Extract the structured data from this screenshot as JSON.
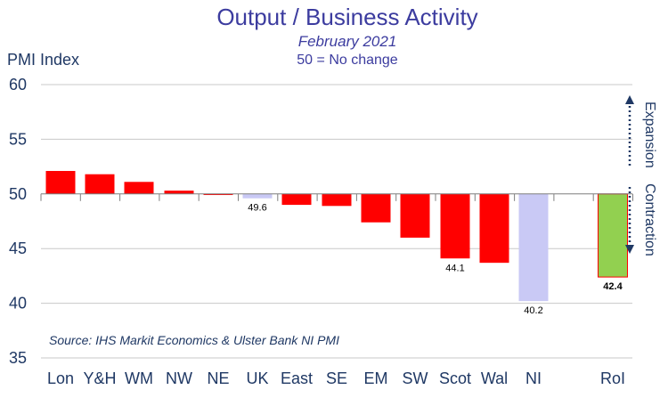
{
  "chart_data": {
    "type": "bar",
    "title": "Output / Business Activity",
    "subtitle": "February 2021",
    "note": "50 = No change",
    "ylabel": "PMI Index",
    "ylim": [
      35,
      60
    ],
    "yticks": [
      35,
      40,
      45,
      50,
      55,
      60
    ],
    "baseline": 50,
    "grid": true,
    "categories": [
      "Lon",
      "Y&H",
      "WM",
      "NW",
      "NE",
      "UK",
      "East",
      "SE",
      "EM",
      "SW",
      "Scot",
      "Wal",
      "NI",
      "RoI"
    ],
    "values": [
      52.1,
      51.8,
      51.1,
      50.3,
      49.9,
      49.6,
      49.0,
      48.9,
      47.4,
      46.0,
      44.1,
      43.7,
      40.2,
      42.4
    ],
    "data_labels": [
      {
        "category": "UK",
        "text": "49.6"
      },
      {
        "category": "Scot",
        "text": "44.1"
      },
      {
        "category": "NI",
        "text": "40.2"
      },
      {
        "category": "RoI",
        "text": "42.4"
      }
    ],
    "annotations": {
      "expansion": "Expansion",
      "contraction": "Contraction"
    },
    "source": "Source: IHS Markit Economics & Ulster Bank NI PMI"
  },
  "colors": {
    "default_bar": "#ff0000",
    "uk_bar": "#c9c9f5",
    "ni_bar": "#c9c9f5",
    "roi_bar": "#92d050",
    "roi_label": "#4ea72e",
    "grid": "#c8c8c8",
    "text": "#1f3864",
    "title": "#3c3c9f"
  }
}
